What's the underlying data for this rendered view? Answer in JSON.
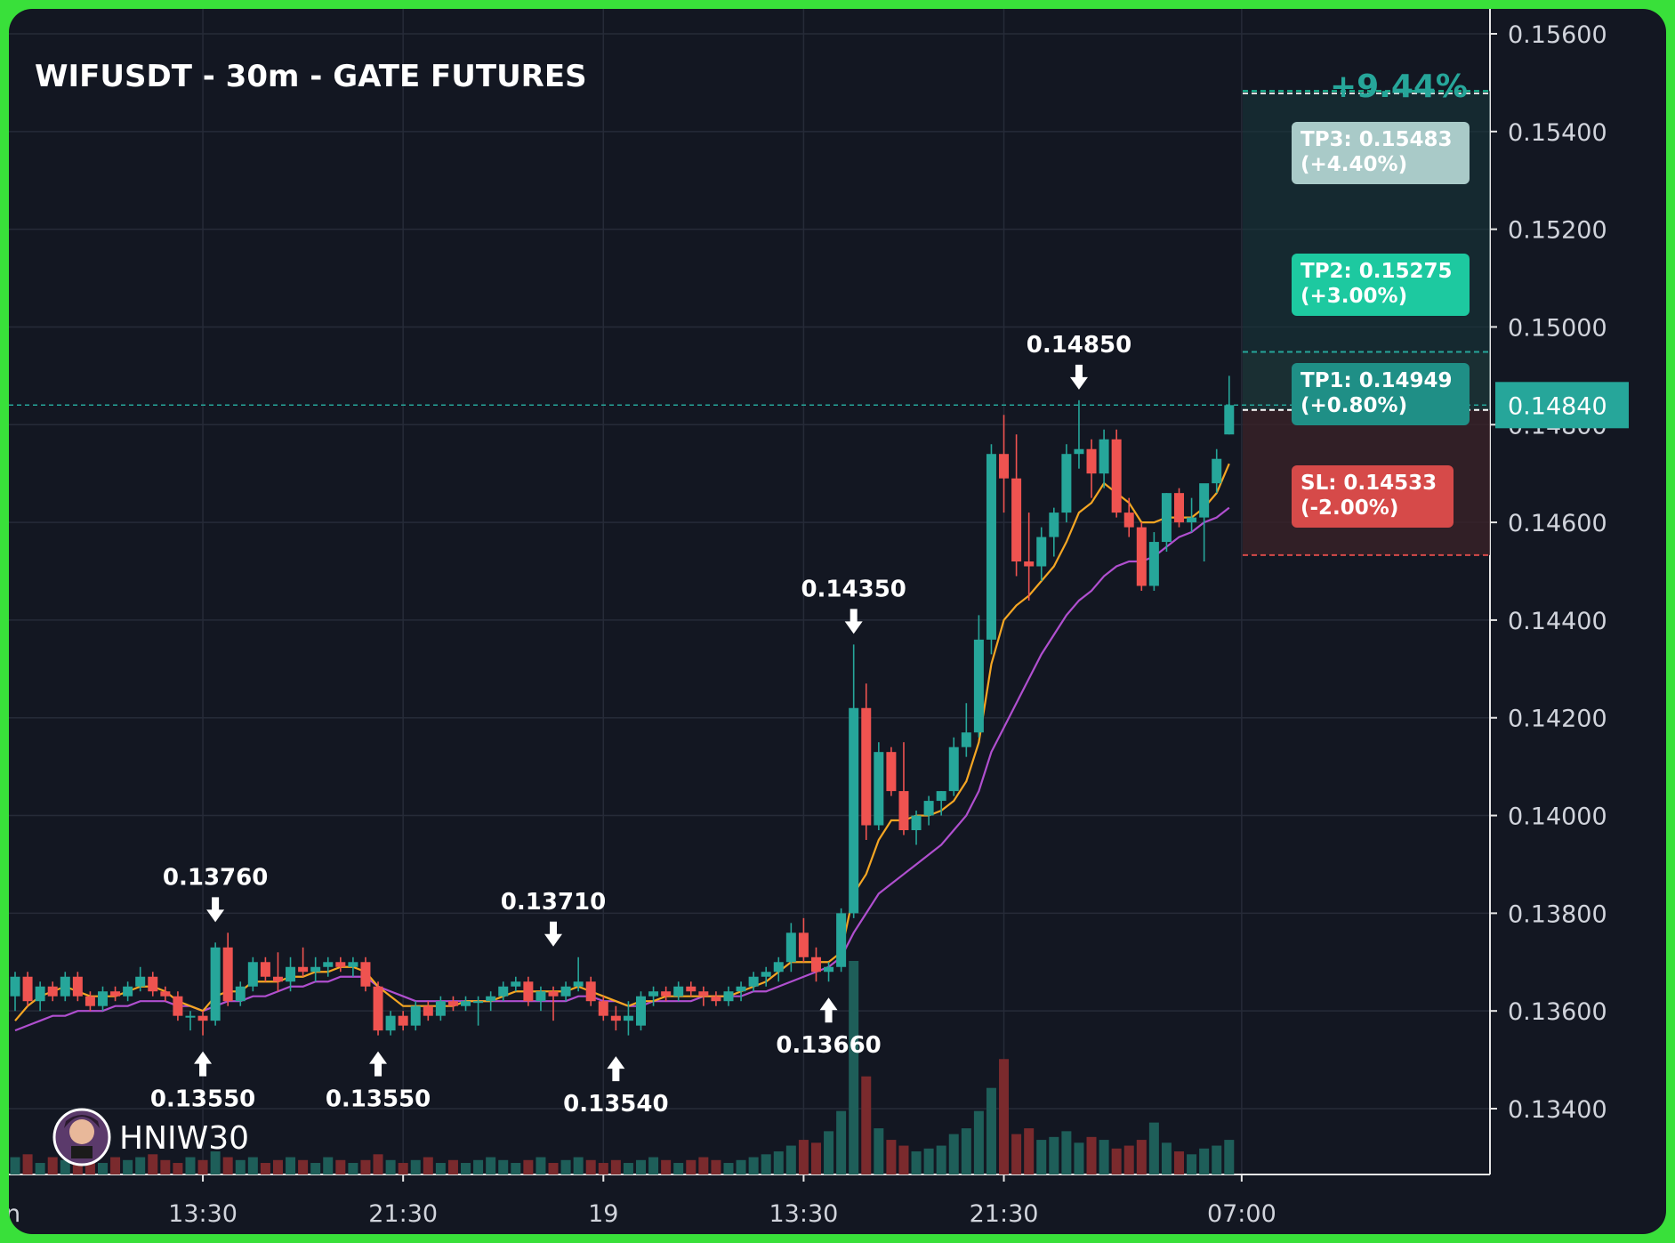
{
  "chart_data": {
    "type": "candlestick",
    "title": "WIFUSDT - 30m - GATE FUTURES",
    "watermark": "HNIW30",
    "change_label": "+9.44%",
    "last_price": "0.14840",
    "ylim": [
      0.1327,
      0.1569
    ],
    "y_ticks": [
      "0.15600",
      "0.15400",
      "0.15200",
      "0.15000",
      "0.14800",
      "0.14600",
      "0.14400",
      "0.14200",
      "0.14000",
      "0.13800",
      "0.13600",
      "0.13400"
    ],
    "x_ticks": [
      {
        "label": "n",
        "index": 0
      },
      {
        "label": "13:30",
        "index": 15
      },
      {
        "label": "21:30",
        "index": 31
      },
      {
        "label": "19",
        "index": 47
      },
      {
        "label": "13:30",
        "index": 63
      },
      {
        "label": "21:30",
        "index": 79
      },
      {
        "label": "07:00",
        "index": 98
      }
    ],
    "candles": [
      [
        0.1363,
        0.1368,
        0.136,
        0.1367
      ],
      [
        0.1367,
        0.1368,
        0.1361,
        0.1362
      ],
      [
        0.1362,
        0.1366,
        0.136,
        0.1365
      ],
      [
        0.1365,
        0.1366,
        0.1362,
        0.1363
      ],
      [
        0.1363,
        0.1368,
        0.1362,
        0.1367
      ],
      [
        0.1367,
        0.1368,
        0.1362,
        0.1363
      ],
      [
        0.1363,
        0.1364,
        0.136,
        0.1361
      ],
      [
        0.1361,
        0.1365,
        0.136,
        0.1364
      ],
      [
        0.1364,
        0.1365,
        0.1362,
        0.1363
      ],
      [
        0.1363,
        0.1366,
        0.1362,
        0.1365
      ],
      [
        0.1365,
        0.1369,
        0.1364,
        0.1367
      ],
      [
        0.1367,
        0.1368,
        0.1363,
        0.1364
      ],
      [
        0.1364,
        0.1365,
        0.1362,
        0.1363
      ],
      [
        0.1363,
        0.1364,
        0.1358,
        0.1359
      ],
      [
        0.1359,
        0.136,
        0.1356,
        0.1359
      ],
      [
        0.1359,
        0.136,
        0.1355,
        0.1358
      ],
      [
        0.1358,
        0.1374,
        0.1357,
        0.1373
      ],
      [
        0.1373,
        0.1376,
        0.1361,
        0.1362
      ],
      [
        0.1362,
        0.1366,
        0.1361,
        0.1365
      ],
      [
        0.1365,
        0.1371,
        0.1364,
        0.137
      ],
      [
        0.137,
        0.1371,
        0.1366,
        0.1367
      ],
      [
        0.1367,
        0.1372,
        0.1364,
        0.1366
      ],
      [
        0.1366,
        0.1371,
        0.1364,
        0.1369
      ],
      [
        0.1369,
        0.1373,
        0.1367,
        0.1368
      ],
      [
        0.1368,
        0.1371,
        0.1366,
        0.1369
      ],
      [
        0.1369,
        0.1371,
        0.1367,
        0.137
      ],
      [
        0.137,
        0.1371,
        0.1368,
        0.1369
      ],
      [
        0.1369,
        0.1371,
        0.1367,
        0.137
      ],
      [
        0.137,
        0.1371,
        0.1364,
        0.1365
      ],
      [
        0.1365,
        0.1366,
        0.1355,
        0.1356
      ],
      [
        0.1356,
        0.136,
        0.1355,
        0.1359
      ],
      [
        0.1359,
        0.136,
        0.1356,
        0.1357
      ],
      [
        0.1357,
        0.1362,
        0.1356,
        0.1361
      ],
      [
        0.1361,
        0.1362,
        0.1358,
        0.1359
      ],
      [
        0.1359,
        0.1363,
        0.1358,
        0.1362
      ],
      [
        0.1362,
        0.1363,
        0.136,
        0.1361
      ],
      [
        0.1361,
        0.1363,
        0.136,
        0.1362
      ],
      [
        0.1362,
        0.1363,
        0.1357,
        0.1362
      ],
      [
        0.1362,
        0.1364,
        0.136,
        0.1363
      ],
      [
        0.1363,
        0.1366,
        0.1362,
        0.1365
      ],
      [
        0.1365,
        0.1367,
        0.1364,
        0.1366
      ],
      [
        0.1366,
        0.1367,
        0.1361,
        0.1362
      ],
      [
        0.1362,
        0.1365,
        0.136,
        0.1364
      ],
      [
        0.1364,
        0.1365,
        0.1358,
        0.1363
      ],
      [
        0.1363,
        0.1366,
        0.1362,
        0.1365
      ],
      [
        0.1365,
        0.1371,
        0.1364,
        0.1366
      ],
      [
        0.1366,
        0.1367,
        0.1361,
        0.1362
      ],
      [
        0.1362,
        0.1363,
        0.1358,
        0.1359
      ],
      [
        0.1359,
        0.1361,
        0.1356,
        0.1358
      ],
      [
        0.1358,
        0.1362,
        0.1355,
        0.1359
      ],
      [
        0.1357,
        0.1364,
        0.1356,
        0.1363
      ],
      [
        0.1363,
        0.1365,
        0.1361,
        0.1364
      ],
      [
        0.1364,
        0.1365,
        0.1362,
        0.1363
      ],
      [
        0.1363,
        0.1366,
        0.1362,
        0.1365
      ],
      [
        0.1365,
        0.1366,
        0.1363,
        0.1364
      ],
      [
        0.1364,
        0.1365,
        0.1361,
        0.1363
      ],
      [
        0.1363,
        0.1364,
        0.1361,
        0.1362
      ],
      [
        0.1362,
        0.1365,
        0.1361,
        0.1364
      ],
      [
        0.1364,
        0.1366,
        0.1362,
        0.1365
      ],
      [
        0.1365,
        0.1368,
        0.1364,
        0.1367
      ],
      [
        0.1367,
        0.1369,
        0.1365,
        0.1368
      ],
      [
        0.1368,
        0.1371,
        0.1366,
        0.137
      ],
      [
        0.137,
        0.1378,
        0.1368,
        0.1376
      ],
      [
        0.1376,
        0.1379,
        0.137,
        0.1371
      ],
      [
        0.1371,
        0.1373,
        0.1366,
        0.1368
      ],
      [
        0.1368,
        0.137,
        0.1366,
        0.1369
      ],
      [
        0.1369,
        0.1381,
        0.1368,
        0.138
      ],
      [
        0.138,
        0.1435,
        0.1379,
        0.1422
      ],
      [
        0.1422,
        0.1427,
        0.1395,
        0.1398
      ],
      [
        0.1398,
        0.1415,
        0.1397,
        0.1413
      ],
      [
        0.1413,
        0.1414,
        0.1404,
        0.1405
      ],
      [
        0.1405,
        0.1415,
        0.1396,
        0.1397
      ],
      [
        0.1397,
        0.1401,
        0.1394,
        0.14
      ],
      [
        0.14,
        0.1404,
        0.1398,
        0.1403
      ],
      [
        0.1403,
        0.1405,
        0.14,
        0.1405
      ],
      [
        0.1405,
        0.1416,
        0.1404,
        0.1414
      ],
      [
        0.1414,
        0.1423,
        0.1412,
        0.1417
      ],
      [
        0.1417,
        0.1441,
        0.1416,
        0.1436
      ],
      [
        0.1436,
        0.1476,
        0.1433,
        0.1474
      ],
      [
        0.1474,
        0.1482,
        0.1462,
        0.1469
      ],
      [
        0.1469,
        0.1478,
        0.1449,
        0.1452
      ],
      [
        0.1452,
        0.1462,
        0.1444,
        0.1451
      ],
      [
        0.1451,
        0.1459,
        0.1448,
        0.1457
      ],
      [
        0.1457,
        0.1463,
        0.1453,
        0.1462
      ],
      [
        0.1462,
        0.1476,
        0.146,
        0.1474
      ],
      [
        0.1474,
        0.1485,
        0.1471,
        0.1475
      ],
      [
        0.1475,
        0.1477,
        0.1465,
        0.147
      ],
      [
        0.147,
        0.1479,
        0.1467,
        0.1477
      ],
      [
        0.1477,
        0.1479,
        0.1461,
        0.1462
      ],
      [
        0.1462,
        0.1465,
        0.1457,
        0.1459
      ],
      [
        0.1459,
        0.146,
        0.1446,
        0.1447
      ],
      [
        0.1447,
        0.1458,
        0.1446,
        0.1456
      ],
      [
        0.1456,
        0.1466,
        0.1454,
        0.1466
      ],
      [
        0.1466,
        0.1467,
        0.1459,
        0.146
      ],
      [
        0.146,
        0.1465,
        0.1458,
        0.1461
      ],
      [
        0.1461,
        0.1466,
        0.1452,
        0.1468
      ],
      [
        0.1468,
        0.1475,
        0.1466,
        0.1473
      ],
      [
        0.1478,
        0.149,
        0.1478,
        0.1484
      ]
    ],
    "ema_fast": [
      0.1358,
      0.1361,
      0.1363,
      0.1364,
      0.1365,
      0.1364,
      0.1363,
      0.1363,
      0.1363,
      0.1364,
      0.1365,
      0.1365,
      0.1364,
      0.1362,
      0.1361,
      0.136,
      0.1363,
      0.1364,
      0.1364,
      0.1366,
      0.1366,
      0.1366,
      0.1367,
      0.1367,
      0.1368,
      0.1368,
      0.1369,
      0.1369,
      0.1368,
      0.1365,
      0.1363,
      0.1361,
      0.1361,
      0.1361,
      0.1361,
      0.1361,
      0.1362,
      0.1362,
      0.1362,
      0.1363,
      0.1364,
      0.1364,
      0.1364,
      0.1364,
      0.1364,
      0.1365,
      0.1364,
      0.1363,
      0.1362,
      0.1361,
      0.1362,
      0.1362,
      0.1363,
      0.1363,
      0.1363,
      0.1363,
      0.1363,
      0.1363,
      0.1364,
      0.1365,
      0.1366,
      0.1368,
      0.137,
      0.137,
      0.137,
      0.137,
      0.1372,
      0.1384,
      0.1388,
      0.1395,
      0.1399,
      0.1399,
      0.14,
      0.14,
      0.1401,
      0.1403,
      0.1407,
      0.1415,
      0.1431,
      0.144,
      0.1443,
      0.1445,
      0.1448,
      0.1451,
      0.1456,
      0.1462,
      0.1464,
      0.1468,
      0.1466,
      0.1464,
      0.146,
      0.146,
      0.1461,
      0.1461,
      0.1461,
      0.1463,
      0.1466,
      0.1472
    ],
    "ema_slow": [
      0.1356,
      0.1357,
      0.1358,
      0.1359,
      0.1359,
      0.136,
      0.136,
      0.136,
      0.1361,
      0.1361,
      0.1362,
      0.1362,
      0.1362,
      0.1361,
      0.1361,
      0.136,
      0.1361,
      0.1362,
      0.1362,
      0.1363,
      0.1363,
      0.1364,
      0.1365,
      0.1365,
      0.1366,
      0.1366,
      0.1367,
      0.1367,
      0.1367,
      0.1365,
      0.1364,
      0.1363,
      0.1362,
      0.1362,
      0.1362,
      0.1362,
      0.1362,
      0.1362,
      0.1362,
      0.1362,
      0.1362,
      0.1362,
      0.1362,
      0.1362,
      0.1362,
      0.1363,
      0.1363,
      0.1362,
      0.1362,
      0.1361,
      0.1361,
      0.1362,
      0.1362,
      0.1362,
      0.1362,
      0.1363,
      0.1363,
      0.1363,
      0.1363,
      0.1364,
      0.1364,
      0.1365,
      0.1366,
      0.1367,
      0.1368,
      0.1369,
      0.1371,
      0.1376,
      0.138,
      0.1384,
      0.1386,
      0.1388,
      0.139,
      0.1392,
      0.1394,
      0.1397,
      0.14,
      0.1405,
      0.1413,
      0.1418,
      0.1423,
      0.1428,
      0.1433,
      0.1437,
      0.1441,
      0.1444,
      0.1446,
      0.1449,
      0.1451,
      0.1452,
      0.1452,
      0.1453,
      0.1455,
      0.1457,
      0.1458,
      0.146,
      0.1461,
      0.1463
    ],
    "volume": [
      6,
      7,
      4,
      6,
      5,
      8,
      5,
      4,
      6,
      5,
      6,
      7,
      5,
      4,
      6,
      5,
      8,
      6,
      5,
      6,
      4,
      5,
      6,
      5,
      4,
      6,
      5,
      4,
      5,
      7,
      5,
      4,
      5,
      6,
      4,
      5,
      4,
      5,
      6,
      5,
      4,
      5,
      6,
      4,
      5,
      6,
      5,
      4,
      5,
      4,
      5,
      6,
      5,
      4,
      5,
      6,
      5,
      4,
      5,
      6,
      7,
      8,
      10,
      12,
      11,
      15,
      22,
      74,
      34,
      16,
      12,
      10,
      8,
      9,
      10,
      14,
      16,
      22,
      30,
      40,
      14,
      16,
      12,
      13,
      15,
      11,
      13,
      12,
      9,
      10,
      12,
      18,
      11,
      8,
      7,
      9,
      10,
      12
    ],
    "annotations": [
      {
        "label": "0.13760",
        "index": 16,
        "side": "high",
        "price": 0.1376
      },
      {
        "label": "0.13550",
        "index": 15,
        "side": "low",
        "price": 0.1355
      },
      {
        "label": "0.13550",
        "index": 29,
        "side": "low",
        "price": 0.1355
      },
      {
        "label": "0.13710",
        "index": 43,
        "side": "high",
        "price": 0.1371
      },
      {
        "label": "0.13540",
        "index": 48,
        "side": "low",
        "price": 0.1354
      },
      {
        "label": "0.14350",
        "index": 67,
        "side": "high",
        "price": 0.1435
      },
      {
        "label": "0.13660",
        "index": 65,
        "side": "low",
        "price": 0.1366
      },
      {
        "label": "0.14850",
        "index": 85,
        "side": "high",
        "price": 0.1485
      }
    ],
    "levels": {
      "entry": 0.1483,
      "tp1": {
        "label": "TP1: 0.14949",
        "pct": "(+0.80%)",
        "price": 0.14949
      },
      "tp2": {
        "label": "TP2: 0.15275",
        "pct": "(+3.00%)",
        "price": 0.15275
      },
      "tp3": {
        "label": "TP3: 0.15483",
        "pct": "(+4.40%)",
        "price": 0.15483
      },
      "sl": {
        "label": "SL: 0.14533",
        "pct": "(-2.00%)",
        "price": 0.14533
      }
    },
    "colors": {
      "background": "#131722",
      "up": "#26a69a",
      "down": "#ef5350",
      "ema_fast": "#f5a623",
      "ema_slow": "#b04fcf",
      "tp1": "#26a69a",
      "tp2": "#1dc9a0",
      "tp3": "#a9cac8",
      "sl": "#d64a49",
      "grid": "#262b38",
      "text": "#d1d4dc",
      "frame": "#39e03a"
    }
  }
}
